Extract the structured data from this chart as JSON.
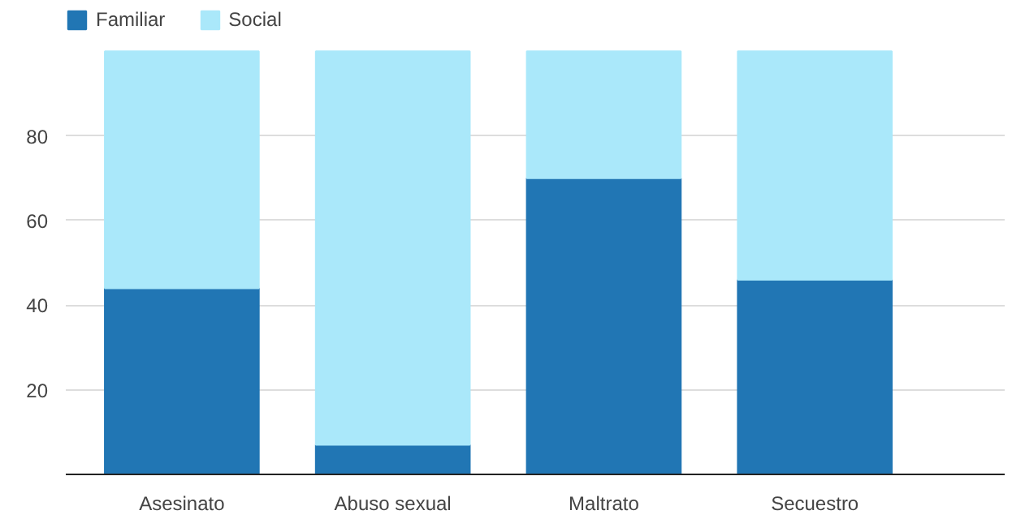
{
  "chart_data": {
    "type": "bar",
    "stacked": true,
    "categories": [
      "Asesinato",
      "Abuso sexual",
      "Maltrato",
      "Secuestro"
    ],
    "series": [
      {
        "name": "Familiar",
        "color": "#2176b4",
        "values": [
          44,
          7,
          70,
          46
        ]
      },
      {
        "name": "Social",
        "color": "#aae8fa",
        "values": [
          56,
          93,
          30,
          54
        ]
      }
    ],
    "ylim": [
      0,
      110
    ],
    "yticks": [
      20,
      40,
      60,
      80
    ],
    "grid": "y",
    "legend": "top left"
  }
}
